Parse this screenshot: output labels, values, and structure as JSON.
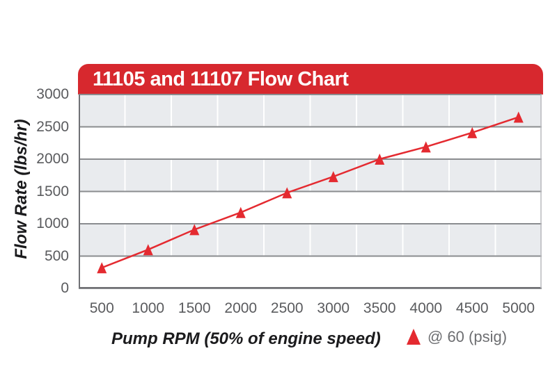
{
  "banner": {
    "title": "11105 and 11107 Flow Chart",
    "background_color": "#D7282E",
    "text_color": "#FFFFFF"
  },
  "chart_data": {
    "type": "line",
    "title": "11105 and 11107 Flow Chart",
    "xlabel": "Pump RPM (50% of engine speed)",
    "ylabel": "Flow Rate (lbs/hr)",
    "x": [
      500,
      1000,
      1500,
      2000,
      2500,
      3000,
      3500,
      4000,
      4500,
      5000
    ],
    "series": [
      {
        "name": "@ 60 (psig)",
        "marker": "triangle",
        "color": "#E42A30",
        "values": [
          320,
          600,
          910,
          1175,
          1480,
          1730,
          2000,
          2190,
          2410,
          2650
        ]
      }
    ],
    "ylim": [
      0,
      3000
    ],
    "y_ticks": [
      3000,
      2500,
      2000,
      1500,
      1000,
      500,
      0
    ],
    "x_ticks": [
      500,
      1000,
      1500,
      2000,
      2500,
      3000,
      3500,
      4000,
      4500,
      5000
    ],
    "grid": "alternating-horizontal-bands",
    "legend_position": "bottom-right"
  },
  "legend": {
    "marker_icon": "triangle-icon",
    "marker_color": "#E42A30",
    "label": "@ 60 (psig)"
  },
  "colors": {
    "banner_red": "#D7282E",
    "series_red": "#E42A30",
    "band_gray": "#E9EBEE",
    "grid_dark": "#8A8C8F",
    "axis_dark": "#707175",
    "axis_light": "#B9BABE",
    "tick_text": "#5A5B5E",
    "legend_text": "#6D6E71"
  }
}
